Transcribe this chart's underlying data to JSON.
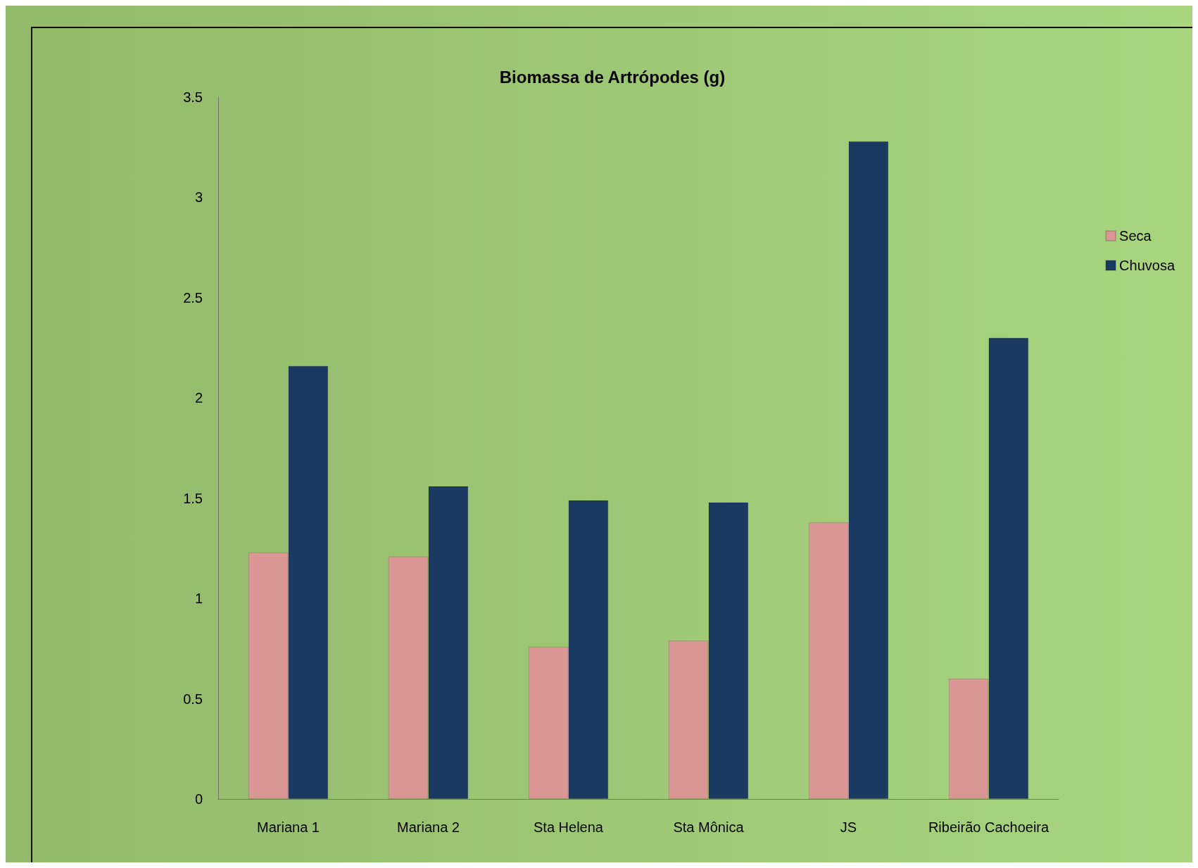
{
  "chart_data": {
    "type": "bar",
    "title": "Biomassa de Artrópodes (g)",
    "categories": [
      "Mariana 1",
      "Mariana 2",
      "Sta Helena",
      "Sta Mônica",
      "JS",
      "Ribeirão Cachoeira"
    ],
    "series": [
      {
        "name": "Seca",
        "color": "#d99694",
        "values": [
          1.23,
          1.21,
          0.76,
          0.79,
          1.38,
          0.6
        ]
      },
      {
        "name": "Chuvosa",
        "color": "#1b3a62",
        "values": [
          2.16,
          1.56,
          1.49,
          1.48,
          3.28,
          2.3
        ]
      }
    ],
    "ylim": [
      0,
      3.5
    ],
    "yticks": [
      0,
      0.5,
      1,
      1.5,
      2,
      2.5,
      3,
      3.5
    ],
    "grid": false,
    "legend": "right"
  }
}
